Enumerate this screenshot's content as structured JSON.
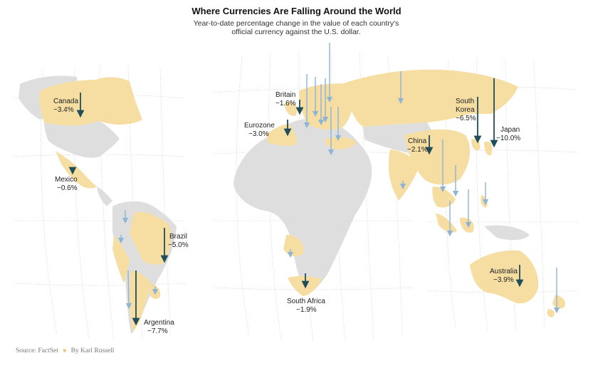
{
  "title": "Where Currencies Are Falling Around the World",
  "subtitle": "Year-to-date percentage change in the value of each country's official currency against the U.S. dollar.",
  "source": "Source: FactSet",
  "byline": "By Karl Russell",
  "colors": {
    "land_highlight": "#f6dea3",
    "land_other": "#dedede",
    "arrow_labeled": "#1f4e5a",
    "arrow_unlabeled": "#8fb4d4",
    "grid": "#bbbbbb"
  },
  "labels": [
    {
      "id": "canada",
      "name": "Canada",
      "value": "−3.4%"
    },
    {
      "id": "mexico",
      "name": "Mexico",
      "value": "−0.6%"
    },
    {
      "id": "brazil",
      "name": "Brazil",
      "value": "−5.0%"
    },
    {
      "id": "argentina",
      "name": "Argentina",
      "value": "−7.7%"
    },
    {
      "id": "britain",
      "name": "Britain",
      "value": "−1.6%"
    },
    {
      "id": "eurozone",
      "name": "Eurozone",
      "value": "−3.0%"
    },
    {
      "id": "south-africa",
      "name": "South Africa",
      "value": "−1.9%"
    },
    {
      "id": "china",
      "name": "China",
      "value": "−2.1%"
    },
    {
      "id": "south-korea",
      "name": "South Korea",
      "value": "−6.5%"
    },
    {
      "id": "japan",
      "name": "Japan",
      "value": "−10.0%"
    },
    {
      "id": "australia",
      "name": "Australia",
      "value": "−3.9%"
    }
  ]
}
